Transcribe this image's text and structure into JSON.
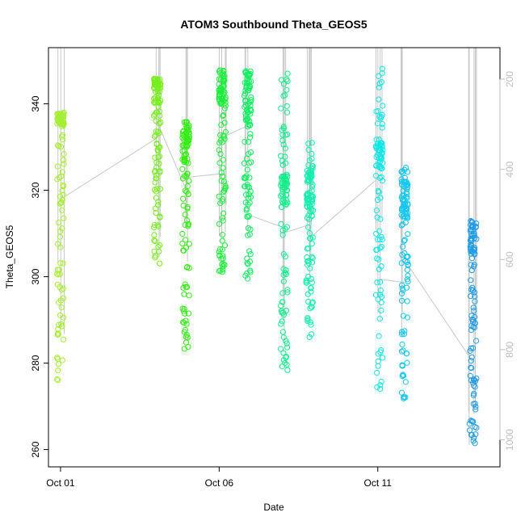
{
  "chart_data": {
    "type": "scatter",
    "title": "ATOM3 Southbound Theta_GEOS5",
    "xlabel": "Date",
    "ylabel": "Theta_GEOS5",
    "y_ticks": [
      260,
      280,
      300,
      320,
      340
    ],
    "y_tick_labels": [
      "260",
      "280",
      "300",
      "320",
      "340"
    ],
    "x_ticks": [
      1,
      6,
      11
    ],
    "x_tick_labels": [
      "Oct 01",
      "Oct 06",
      "Oct 11"
    ],
    "y2_label": "",
    "y2_ticks": [
      200,
      400,
      600,
      800,
      1000
    ],
    "y2_tick_labels": [
      "200",
      "400",
      "600",
      "800",
      "1000"
    ],
    "y2_axis_color": "#bebebe",
    "marker": "open-circle",
    "color_scale": "date-gradient",
    "colors": {
      "early": "#a5ee33",
      "mid_early": "#33ee12",
      "mid": "#12ee8a",
      "mid_late": "#12e6e6",
      "late": "#229ce6",
      "trace_line": "#c8c8c8"
    },
    "clusters": [
      {
        "date": 1.0,
        "y_min": 276,
        "y_max": 338,
        "dense_top": [
          335,
          338
        ],
        "color": "#a5ee33"
      },
      {
        "date": 4.05,
        "y_min": 303,
        "y_max": 346,
        "dense_top": [
          340,
          346
        ],
        "color": "#77ee1d"
      },
      {
        "date": 4.95,
        "y_min": 283,
        "y_max": 336,
        "dense_top": [
          326,
          336
        ],
        "color": "#33ee12"
      },
      {
        "date": 6.1,
        "y_min": 301,
        "y_max": 348,
        "dense_top": [
          340,
          348
        ],
        "color": "#1eee3c"
      },
      {
        "date": 6.9,
        "y_min": 298,
        "y_max": 348,
        "dense_top": [
          336,
          348
        ],
        "color": "#12ee60"
      },
      {
        "date": 8.05,
        "y_min": 278,
        "y_max": 347,
        "dense_top": [
          316,
          324
        ],
        "color": "#12ee8a"
      },
      {
        "date": 8.85,
        "y_min": 286,
        "y_max": 332,
        "dense_top": [
          316,
          326
        ],
        "color": "#12eeae"
      },
      {
        "date": 11.05,
        "y_min": 274,
        "y_max": 349,
        "dense_top": [
          325,
          331
        ],
        "color": "#12e6e6"
      },
      {
        "date": 11.85,
        "y_min": 271,
        "y_max": 326,
        "dense_top": [
          312,
          325
        ],
        "color": "#12c6f0"
      },
      {
        "date": 14.0,
        "y_min": 261,
        "y_max": 313,
        "dense_top": [
          305,
          313
        ],
        "color": "#229ce6"
      }
    ],
    "xlim": [
      0.62,
      14.85
    ],
    "ylim": [
      256.0,
      353.0
    ],
    "y2lim": [
      1060,
      130
    ],
    "grid": false,
    "legend": "none"
  }
}
